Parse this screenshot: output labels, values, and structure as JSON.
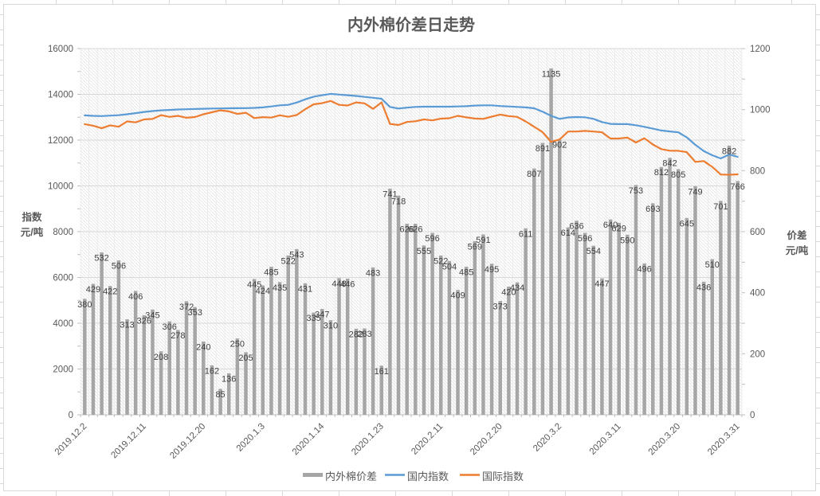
{
  "chart_data": {
    "type": "combo",
    "subtypes": [
      "bar",
      "line",
      "line"
    ],
    "title": "内外棉价差日走势",
    "n_points": 78,
    "x_axis": {
      "tick_labels": [
        "2019.12.2",
        "2019.12.11",
        "2019.12.20",
        "2020.1.3",
        "2020.1.14",
        "2020.1.23",
        "2020.2.11",
        "2020.2.20",
        "2020.3.2",
        "2020.3.11",
        "2020.3.20",
        "2020.3.31"
      ],
      "tick_point_indices": [
        0,
        7,
        14,
        21,
        28,
        35,
        42,
        49,
        56,
        63,
        70,
        77
      ],
      "label_interval": 7
    },
    "left_axis": {
      "title_lines": [
        "指数",
        "元/吨"
      ],
      "min": 0,
      "max": 16000,
      "step": 2000,
      "tick_labels": [
        "0",
        "2000",
        "4000",
        "6000",
        "8000",
        "10000",
        "12000",
        "14000",
        "16000"
      ]
    },
    "right_axis": {
      "title_lines": [
        "价差",
        "元/吨"
      ],
      "min": 0,
      "max": 1200,
      "step": 200,
      "tick_labels": [
        "0",
        "200",
        "400",
        "600",
        "800",
        "1000",
        "1200"
      ]
    },
    "grid": "horizontal-major-and-category-vertical, hatched plot fill",
    "legend_position": "bottom-center",
    "series": [
      {
        "name": "内外棉价差",
        "type": "bar",
        "axis": "right",
        "color": "#A6A6A6",
        "data_labels": true,
        "values": [
          380,
          429,
          532,
          422,
          506,
          313,
          406,
          326,
          345,
          208,
          306,
          278,
          372,
          353,
          240,
          162,
          85,
          136,
          250,
          205,
          445,
          424,
          485,
          435,
          522,
          543,
          431,
          335,
          347,
          310,
          448,
          446,
          282,
          283,
          483,
          161,
          741,
          718,
          626,
          626,
          555,
          596,
          522,
          504,
          409,
          485,
          569,
          591,
          495,
          373,
          420,
          434,
          611,
          807,
          891,
          1135,
          902,
          614,
          636,
          596,
          554,
          447,
          640,
          629,
          590,
          753,
          496,
          693,
          812,
          842,
          805,
          645,
          749,
          436,
          510,
          701,
          882,
          766
        ]
      },
      {
        "name": "国内指数",
        "type": "line",
        "axis": "left",
        "color": "#5B9BD5",
        "data_labels": false,
        "values": [
          13080,
          13060,
          13050,
          13070,
          13090,
          13130,
          13180,
          13230,
          13270,
          13300,
          13320,
          13340,
          13350,
          13360,
          13370,
          13380,
          13385,
          13390,
          13395,
          13400,
          13410,
          13430,
          13470,
          13520,
          13540,
          13640,
          13780,
          13900,
          13960,
          14020,
          13990,
          13960,
          13930,
          13890,
          13850,
          13810,
          13450,
          13380,
          13420,
          13450,
          13460,
          13460,
          13460,
          13460,
          13470,
          13480,
          13510,
          13520,
          13520,
          13490,
          13470,
          13450,
          13430,
          13390,
          13240,
          13060,
          12930,
          12990,
          13010,
          13000,
          12930,
          12790,
          12710,
          12700,
          12700,
          12650,
          12580,
          12500,
          12420,
          12380,
          12340,
          12120,
          11800,
          11520,
          11340,
          11200,
          11370,
          11270
        ]
      },
      {
        "name": "国际指数",
        "type": "line",
        "axis": "left",
        "color": "#ED7D31",
        "data_labels": false,
        "values": [
          12700,
          12631,
          12518,
          12648,
          12584,
          12817,
          12774,
          12904,
          12925,
          13092,
          13014,
          13062,
          12978,
          13007,
          13130,
          13218,
          13300,
          13254,
          13145,
          13195,
          12965,
          13006,
          12985,
          13085,
          13018,
          13097,
          13349,
          13565,
          13613,
          13710,
          13542,
          13514,
          13648,
          13607,
          13367,
          13649,
          12709,
          12662,
          12794,
          12824,
          12905,
          12864,
          12938,
          12956,
          13061,
          12995,
          12941,
          12929,
          13025,
          13117,
          13050,
          13016,
          12819,
          12583,
          12349,
          11925,
          12028,
          12376,
          12374,
          12404,
          12376,
          12343,
          12070,
          12071,
          12110,
          11897,
          12084,
          11807,
          11608,
          11538,
          11535,
          11475,
          11051,
          11084,
          10830,
          10499,
          10488,
          10504
        ]
      }
    ],
    "colors": {
      "bar": "#A6A6A6",
      "domestic_line": "#5B9BD5",
      "international_line": "#ED7D31",
      "gridline": "#D9D9D9",
      "axis_text": "#595959",
      "data_label_text": "#404040",
      "title_text": "#595959"
    }
  }
}
